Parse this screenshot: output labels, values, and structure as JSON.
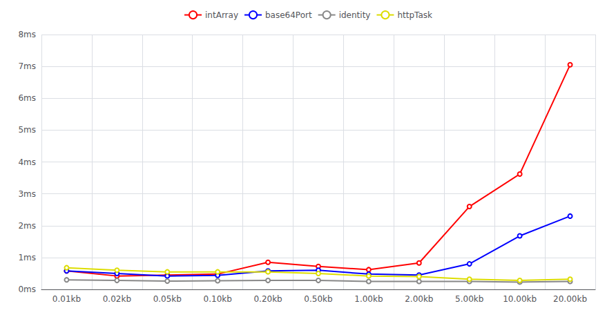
{
  "chart_data": {
    "type": "line",
    "categories": [
      "0.01kb",
      "0.02kb",
      "0.05kb",
      "0.10kb",
      "0.20kb",
      "0.50kb",
      "1.00kb",
      "2.00kb",
      "5.00kb",
      "10.00kb",
      "20.00kb"
    ],
    "series": [
      {
        "name": "intArray",
        "color": "#ff0000",
        "values": [
          0.58,
          0.42,
          0.45,
          0.48,
          0.85,
          0.72,
          0.62,
          0.83,
          2.6,
          3.62,
          7.05
        ]
      },
      {
        "name": "base64Port",
        "color": "#0000ff",
        "values": [
          0.58,
          0.5,
          0.42,
          0.44,
          0.58,
          0.6,
          0.48,
          0.45,
          0.8,
          1.68,
          2.3
        ]
      },
      {
        "name": "identity",
        "color": "#888888",
        "values": [
          0.3,
          0.28,
          0.26,
          0.27,
          0.28,
          0.28,
          0.25,
          0.25,
          0.25,
          0.23,
          0.25
        ]
      },
      {
        "name": "httpTask",
        "color": "#dddd00",
        "values": [
          0.68,
          0.6,
          0.55,
          0.55,
          0.55,
          0.5,
          0.42,
          0.4,
          0.32,
          0.28,
          0.32
        ]
      }
    ],
    "ylim": [
      0,
      8
    ],
    "yticks": [
      {
        "value": 0,
        "label": "0ms"
      },
      {
        "value": 1,
        "label": "1ms"
      },
      {
        "value": 2,
        "label": "2ms"
      },
      {
        "value": 3,
        "label": "3ms"
      },
      {
        "value": 4,
        "label": "4ms"
      },
      {
        "value": 5,
        "label": "5ms"
      },
      {
        "value": 6,
        "label": "6ms"
      },
      {
        "value": 7,
        "label": "7ms"
      },
      {
        "value": 8,
        "label": "8ms"
      }
    ],
    "grid": true,
    "legend": "top",
    "marker": "circle"
  }
}
